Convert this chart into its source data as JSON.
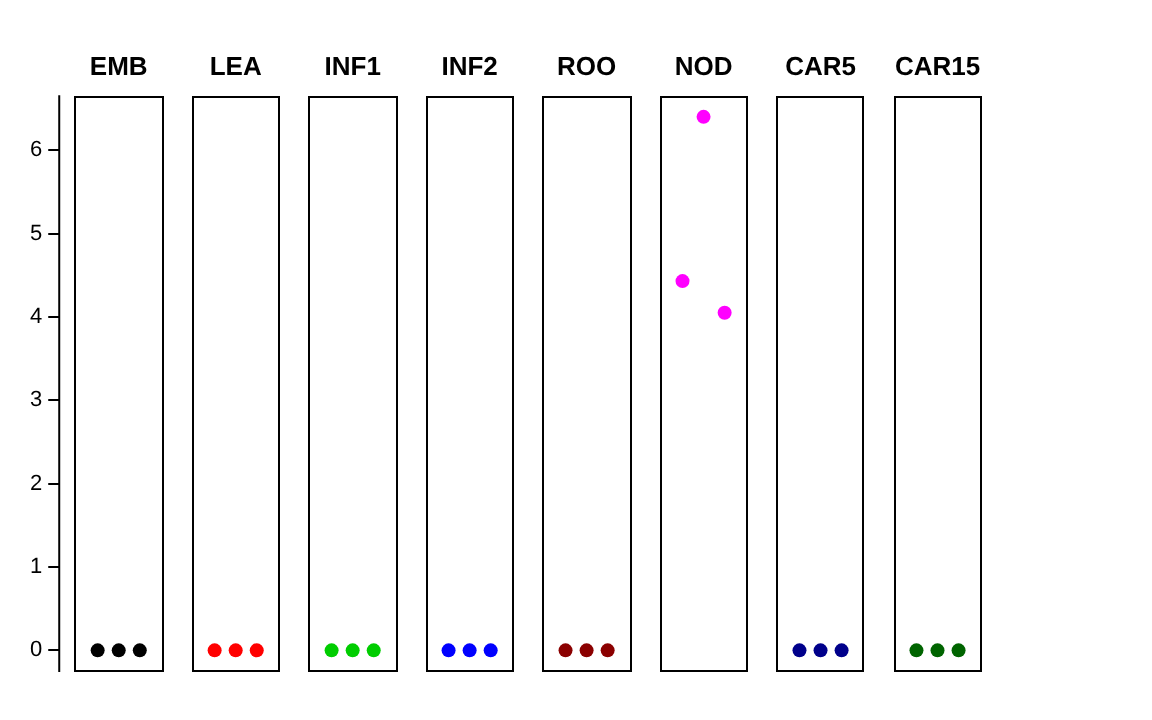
{
  "chart_data": {
    "type": "scatter",
    "categories": [
      "EMB",
      "LEA",
      "INF1",
      "INF2",
      "ROO",
      "NOD",
      "CAR5",
      "CAR15"
    ],
    "series": [
      {
        "x": [
          "EMB",
          "LEA",
          "INF1",
          "INF2",
          "ROO",
          "NOD",
          "CAR5",
          "CAR15"
        ],
        "values": [
          0,
          0,
          0,
          0,
          0,
          4.43,
          0,
          0
        ],
        "colors": [
          "#000000",
          "#ff0000",
          "#00cd00",
          "#0000ff",
          "#8b0000",
          "#ff00ff",
          "#00008b",
          "#006400"
        ]
      },
      {
        "x": [
          "EMB",
          "LEA",
          "INF1",
          "INF2",
          "ROO",
          "NOD",
          "CAR5",
          "CAR15"
        ],
        "values": [
          0,
          0,
          0,
          0,
          0,
          6.4,
          0,
          0
        ],
        "colors": [
          "#000000",
          "#ff0000",
          "#00cd00",
          "#0000ff",
          "#8b0000",
          "#ff00ff",
          "#00008b",
          "#006400"
        ]
      },
      {
        "x": [
          "EMB",
          "LEA",
          "INF1",
          "INF2",
          "ROO",
          "NOD",
          "CAR5",
          "CAR15"
        ],
        "values": [
          0,
          0,
          0,
          0,
          0,
          4.05,
          0,
          0
        ],
        "colors": [
          "#000000",
          "#ff0000",
          "#00cd00",
          "#0000ff",
          "#8b0000",
          "#ff00ff",
          "#00008b",
          "#006400"
        ]
      }
    ],
    "ylim": [
      -0.26,
      6.66
    ],
    "yticks": [
      0,
      1,
      2,
      3,
      4,
      5,
      6
    ],
    "marker": "circle"
  }
}
